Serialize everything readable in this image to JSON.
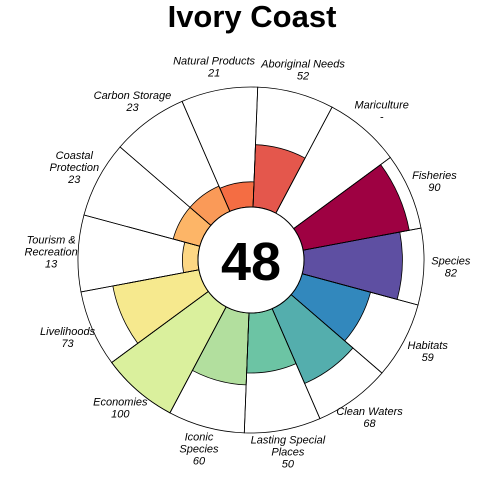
{
  "chart_data": {
    "type": "flower",
    "title": "Ivory Coast",
    "center_score": "48",
    "scale_max": 100,
    "petals": [
      {
        "label": [
          "Natural Products"
        ],
        "value": 21,
        "value_text": "21",
        "color": "#F46D43"
      },
      {
        "label": [
          "Aboriginal Needs"
        ],
        "value": 52,
        "value_text": "52",
        "color": "#E4574C"
      },
      {
        "label": [
          "Mariculture"
        ],
        "value": null,
        "value_text": "-",
        "color": "#D53E4F"
      },
      {
        "label": [
          "Fisheries"
        ],
        "value": 90,
        "value_text": "90",
        "color": "#9E0142"
      },
      {
        "label": [
          "Species"
        ],
        "value": 82,
        "value_text": "82",
        "color": "#5E4FA2"
      },
      {
        "label": [
          "Habitats"
        ],
        "value": 59,
        "value_text": "59",
        "color": "#3288BD"
      },
      {
        "label": [
          "Clean Waters"
        ],
        "value": 68,
        "value_text": "68",
        "color": "#54AEAD"
      },
      {
        "label": [
          "Lasting Special",
          "Places"
        ],
        "value": 50,
        "value_text": "50",
        "color": "#6CC4A4"
      },
      {
        "label": [
          "Iconic",
          "Species"
        ],
        "value": 60,
        "value_text": "60",
        "color": "#B2DF9E"
      },
      {
        "label": [
          "Economies"
        ],
        "value": 100,
        "value_text": "100",
        "color": "#DAF09D"
      },
      {
        "label": [
          "Livelihoods"
        ],
        "value": 73,
        "value_text": "73",
        "color": "#F6E98E"
      },
      {
        "label": [
          "Tourism &",
          "Recreation"
        ],
        "value": 13,
        "value_text": "13",
        "color": "#FDD784"
      },
      {
        "label": [
          "Coastal",
          "Protection"
        ],
        "value": 23,
        "value_text": "23",
        "color": "#FDB567"
      },
      {
        "label": [
          "Carbon Storage"
        ],
        "value": 23,
        "value_text": "23",
        "color": "#FA9A58"
      }
    ]
  }
}
